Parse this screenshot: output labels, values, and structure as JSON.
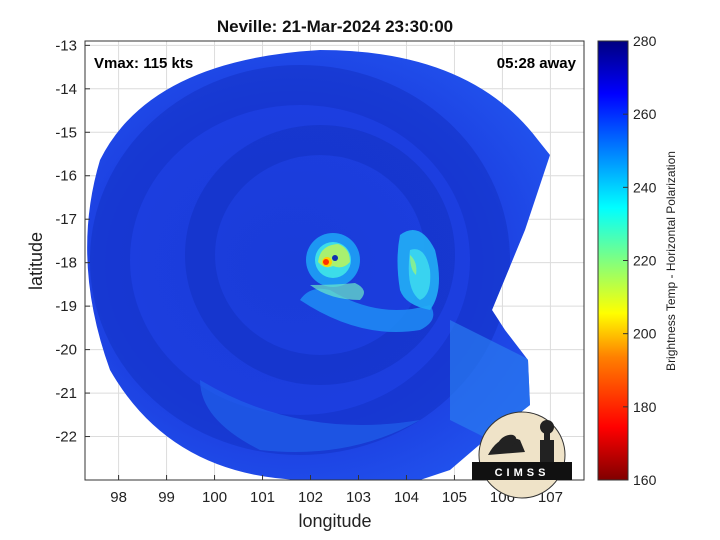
{
  "chart_data": {
    "type": "heatmap",
    "title": "Neville: 21-Mar-2024 23:30:00",
    "xlabel": "longitude",
    "ylabel": "latitude",
    "xlim": [
      97.3,
      107.7
    ],
    "ylim": [
      -23.0,
      -12.9
    ],
    "xticks": [
      98,
      99,
      100,
      101,
      102,
      103,
      104,
      105,
      106,
      107
    ],
    "yticks": [
      -13,
      -14,
      -15,
      -16,
      -17,
      -18,
      -19,
      -20,
      -21,
      -22
    ],
    "grid": true,
    "annotations": {
      "top_left": "Vmax: 115 kts",
      "top_right": "05:28 away"
    },
    "colorbar": {
      "label": "Brightness Temp - Horizontal Polarization",
      "min": 160,
      "max": 280,
      "ticks": [
        160,
        180,
        200,
        220,
        240,
        260,
        280
      ],
      "colormap": [
        "#800000",
        "#ff0000",
        "#ff8000",
        "#ffff00",
        "#80ff80",
        "#00ffff",
        "#0080ff",
        "#0000ff",
        "#000080"
      ]
    },
    "storm_center": {
      "lon": 102.3,
      "lat": -18.0,
      "min_temp": 175
    },
    "features": [
      {
        "name": "eye",
        "lon": 102.25,
        "lat": -17.95,
        "temp": 180
      },
      {
        "name": "eyewall",
        "lon": 102.4,
        "lat": -18.0,
        "temp": 235
      },
      {
        "name": "outer rainband",
        "lon": 104.3,
        "lat": -18.4,
        "temp": 240
      }
    ]
  },
  "logo": {
    "text": "CIMSS"
  }
}
